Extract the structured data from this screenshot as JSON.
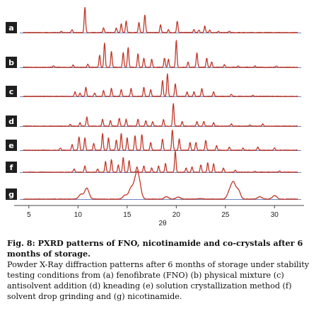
{
  "chart_data": {
    "type": "line",
    "xlabel": "2θ",
    "x_ticks": [
      5,
      10,
      15,
      20,
      25,
      30
    ],
    "xlim": [
      3.5,
      33
    ],
    "series": [
      {
        "name": "a",
        "peaks": [
          [
            8.3,
            0.05
          ],
          [
            9.4,
            0.12
          ],
          [
            10.7,
            1.0
          ],
          [
            12.6,
            0.18
          ],
          [
            13.9,
            0.18
          ],
          [
            14.4,
            0.35
          ],
          [
            14.9,
            0.45
          ],
          [
            16.2,
            0.4
          ],
          [
            16.8,
            0.7
          ],
          [
            18.4,
            0.3
          ],
          [
            19.2,
            0.12
          ],
          [
            20.1,
            0.45
          ],
          [
            21.8,
            0.12
          ],
          [
            22.3,
            0.1
          ],
          [
            22.9,
            0.25
          ],
          [
            23.4,
            0.1
          ],
          [
            24.3,
            0.05
          ],
          [
            25.4,
            0.05
          ]
        ]
      },
      {
        "name": "b",
        "peaks": [
          [
            7.5,
            0.06
          ],
          [
            9.5,
            0.08
          ],
          [
            11.0,
            0.12
          ],
          [
            12.2,
            0.45
          ],
          [
            12.7,
            0.9
          ],
          [
            13.4,
            0.6
          ],
          [
            14.6,
            0.55
          ],
          [
            15.1,
            0.75
          ],
          [
            16.1,
            0.5
          ],
          [
            16.7,
            0.35
          ],
          [
            17.5,
            0.3
          ],
          [
            18.8,
            0.35
          ],
          [
            19.2,
            0.3
          ],
          [
            20.0,
            1.0
          ],
          [
            21.2,
            0.2
          ],
          [
            22.1,
            0.55
          ],
          [
            23.1,
            0.35
          ],
          [
            23.6,
            0.2
          ],
          [
            24.9,
            0.1
          ],
          [
            26.3,
            0.05
          ],
          [
            28.0,
            0.05
          ],
          [
            30.2,
            0.05
          ]
        ]
      },
      {
        "name": "c",
        "peaks": [
          [
            9.7,
            0.2
          ],
          [
            10.2,
            0.15
          ],
          [
            10.8,
            0.4
          ],
          [
            11.7,
            0.15
          ],
          [
            12.6,
            0.25
          ],
          [
            13.4,
            0.35
          ],
          [
            14.4,
            0.3
          ],
          [
            15.4,
            0.35
          ],
          [
            16.7,
            0.4
          ],
          [
            17.4,
            0.3
          ],
          [
            18.6,
            0.7
          ],
          [
            19.1,
            1.0
          ],
          [
            19.9,
            0.55
          ],
          [
            21.1,
            0.2
          ],
          [
            21.8,
            0.2
          ],
          [
            22.6,
            0.35
          ],
          [
            23.8,
            0.2
          ],
          [
            25.6,
            0.1
          ],
          [
            27.8,
            0.05
          ]
        ]
      },
      {
        "name": "d",
        "peaks": [
          [
            9.2,
            0.08
          ],
          [
            10.2,
            0.15
          ],
          [
            10.9,
            0.4
          ],
          [
            12.5,
            0.3
          ],
          [
            13.3,
            0.25
          ],
          [
            14.2,
            0.35
          ],
          [
            14.9,
            0.3
          ],
          [
            16.1,
            0.3
          ],
          [
            16.9,
            0.25
          ],
          [
            17.6,
            0.2
          ],
          [
            18.7,
            0.3
          ],
          [
            19.7,
            1.0
          ],
          [
            20.6,
            0.2
          ],
          [
            22.1,
            0.2
          ],
          [
            22.8,
            0.2
          ],
          [
            23.8,
            0.15
          ],
          [
            25.6,
            0.1
          ],
          [
            27.5,
            0.05
          ],
          [
            28.8,
            0.1
          ]
        ]
      },
      {
        "name": "e",
        "peaks": [
          [
            8.2,
            0.1
          ],
          [
            9.4,
            0.25
          ],
          [
            10.1,
            0.6
          ],
          [
            10.7,
            0.55
          ],
          [
            11.6,
            0.3
          ],
          [
            12.5,
            0.75
          ],
          [
            13.1,
            0.55
          ],
          [
            13.9,
            0.45
          ],
          [
            14.4,
            0.75
          ],
          [
            15.0,
            0.55
          ],
          [
            15.8,
            0.65
          ],
          [
            16.5,
            0.7
          ],
          [
            17.4,
            0.35
          ],
          [
            18.6,
            0.5
          ],
          [
            19.6,
            0.9
          ],
          [
            20.3,
            0.5
          ],
          [
            21.4,
            0.35
          ],
          [
            22.0,
            0.35
          ],
          [
            23.0,
            0.45
          ],
          [
            24.1,
            0.2
          ],
          [
            25.4,
            0.15
          ],
          [
            26.8,
            0.1
          ],
          [
            28.3,
            0.15
          ],
          [
            30.0,
            0.1
          ]
        ]
      },
      {
        "name": "f",
        "peaks": [
          [
            9.6,
            0.15
          ],
          [
            10.7,
            0.3
          ],
          [
            12.0,
            0.15
          ],
          [
            12.8,
            0.5
          ],
          [
            13.4,
            0.6
          ],
          [
            14.1,
            0.35
          ],
          [
            14.6,
            0.7
          ],
          [
            15.2,
            0.55
          ],
          [
            16.0,
            0.25
          ],
          [
            16.7,
            0.3
          ],
          [
            17.5,
            0.2
          ],
          [
            18.2,
            0.3
          ],
          [
            18.9,
            0.4
          ],
          [
            19.9,
            1.0
          ],
          [
            21.0,
            0.2
          ],
          [
            21.6,
            0.25
          ],
          [
            22.5,
            0.35
          ],
          [
            23.2,
            0.45
          ],
          [
            23.8,
            0.4
          ],
          [
            24.8,
            0.2
          ],
          [
            26.0,
            0.1
          ],
          [
            28.0,
            0.05
          ],
          [
            30.5,
            0.05
          ]
        ]
      },
      {
        "name": "g",
        "peaks": [
          [
            10.3,
            0.25
          ],
          [
            10.9,
            0.55
          ],
          [
            14.8,
            0.2
          ],
          [
            15.4,
            0.55
          ],
          [
            15.9,
            0.95
          ],
          [
            16.2,
            0.8
          ],
          [
            19.0,
            0.12
          ],
          [
            20.2,
            0.1
          ],
          [
            22.5,
            0.03
          ],
          [
            25.4,
            0.35
          ],
          [
            25.8,
            0.8
          ],
          [
            26.3,
            0.45
          ],
          [
            28.5,
            0.12
          ],
          [
            30.0,
            0.18
          ]
        ]
      }
    ]
  },
  "caption": {
    "title": "Fig. 8: PXRD patterns of FNO, nicotinamide and co-crystals after 6 months of storage.",
    "body": "Powder X-Ray diffraction patterns after 6 months of storage under stability testing conditions from (a) fenofibrate (FNO) (b) physical mixture (c) antisolvent addition (d) kneading (e) solution crystallization method (f) solvent drop grinding and (g) nicotinamide."
  },
  "colors": {
    "pattern": "#c0392b",
    "baseline": "#3b5ba8",
    "label_box": "#1f1f1f"
  }
}
